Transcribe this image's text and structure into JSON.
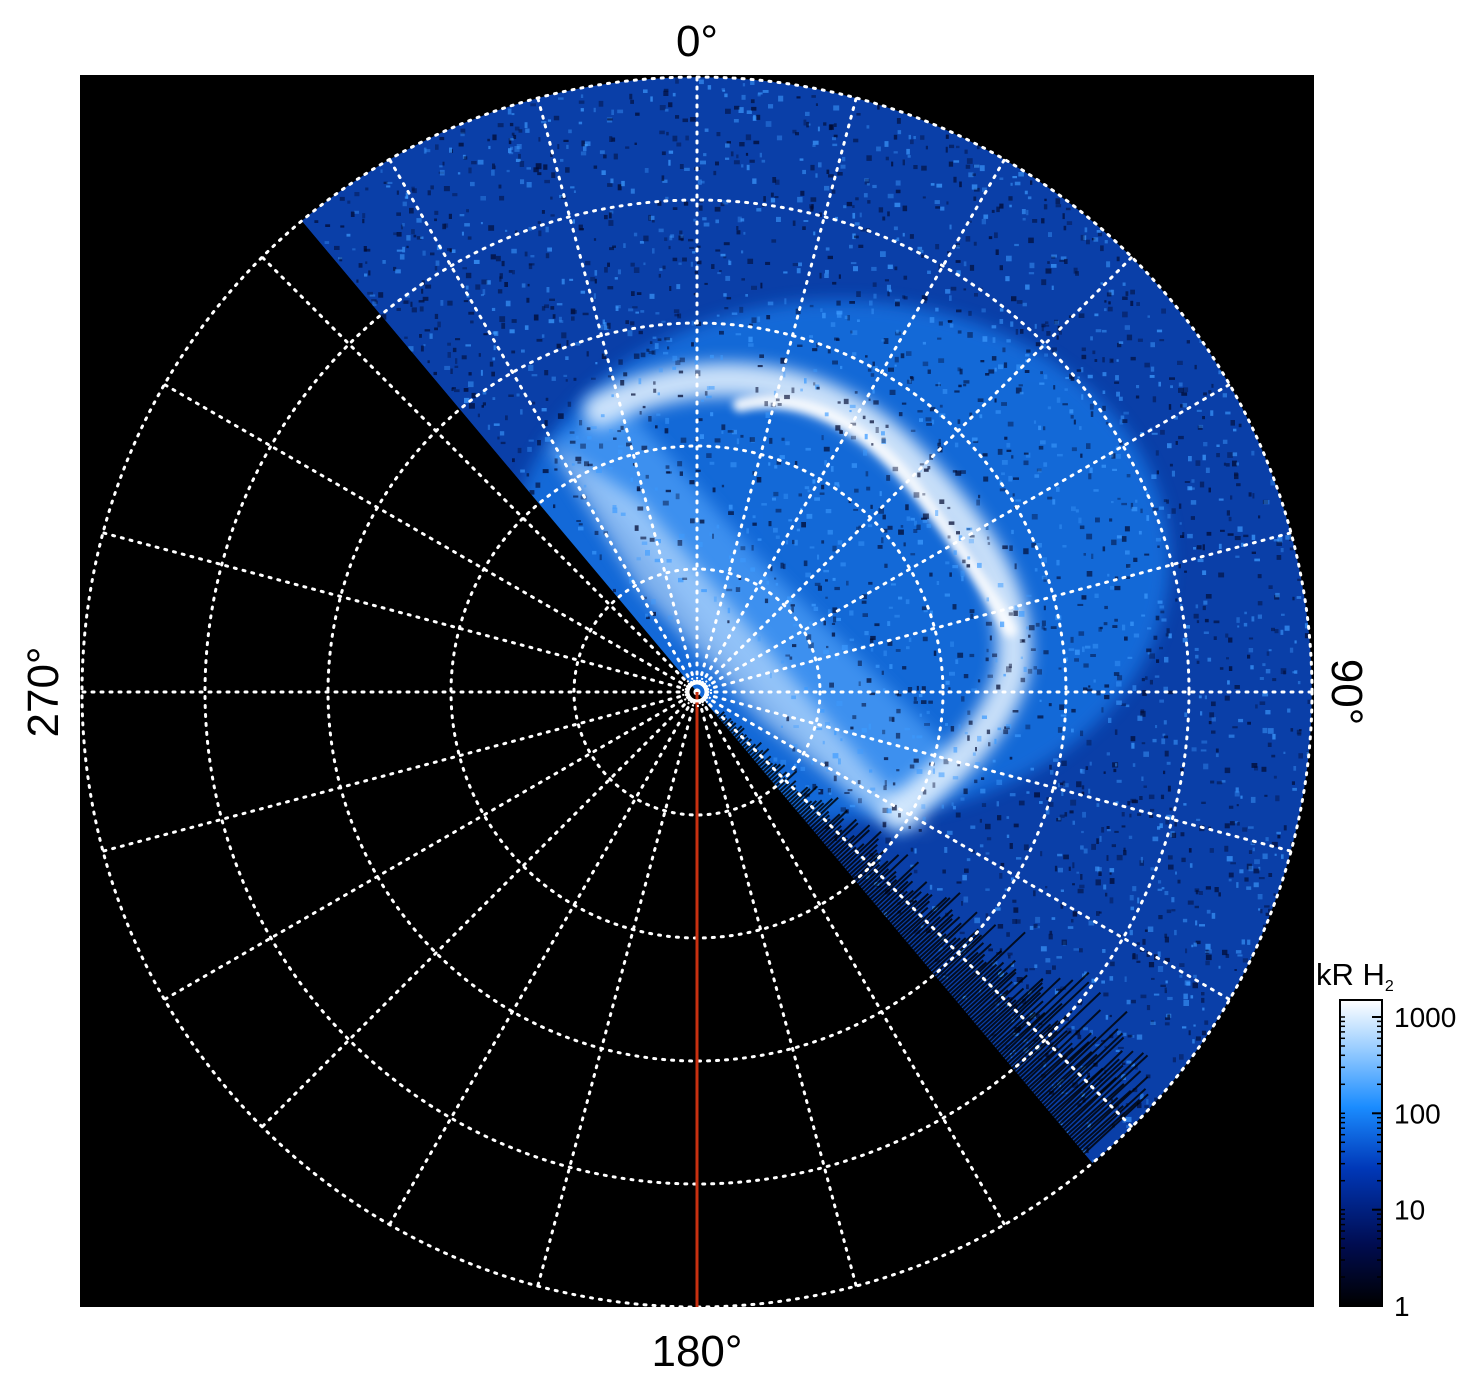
{
  "figure": {
    "longitude_labels": {
      "top": "0°",
      "right": "90°",
      "bottom": "180°",
      "left": "270°"
    },
    "grid": {
      "latitude_circles": 5,
      "meridian_spacing_deg": 15,
      "style": "dotted",
      "color": "#ffffff"
    },
    "background_color": "#000000",
    "reference_meridian_deg": 180,
    "reference_line_color": "#c83010"
  },
  "aurora": {
    "visible_longitude_range_deg": [
      -40,
      140
    ],
    "main_oval_color": "#e8f4ff",
    "emission_color": "#1a8cff",
    "faint_color": "#0a3fa8"
  },
  "colorbar": {
    "title_main": "kR H",
    "title_sub": "2",
    "scale": "log",
    "range": [
      1,
      1500
    ],
    "ticks": [
      {
        "value": 1,
        "label": "1"
      },
      {
        "value": 10,
        "label": "10"
      },
      {
        "value": 100,
        "label": "100"
      },
      {
        "value": 1000,
        "label": "1000"
      }
    ],
    "colors": [
      "#000000",
      "#000c50",
      "#0038b8",
      "#1a8cff",
      "#9fd0ff",
      "#ffffff"
    ]
  }
}
